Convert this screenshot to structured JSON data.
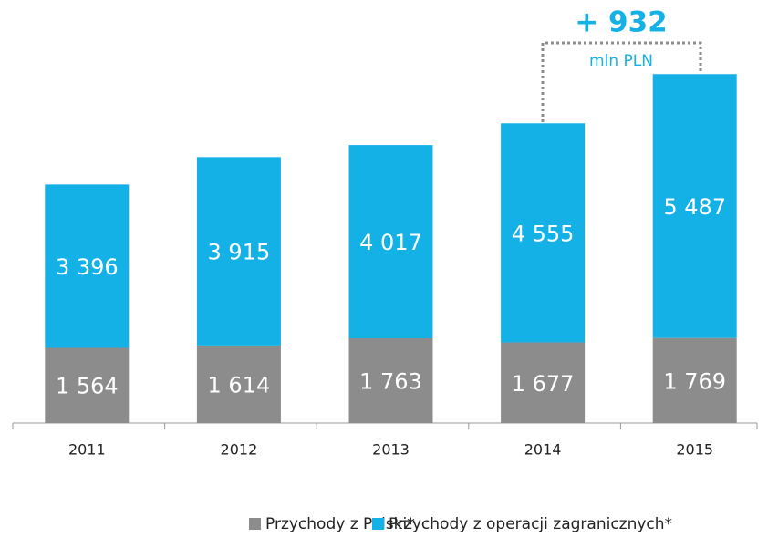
{
  "chart_data": {
    "type": "stacked_bar",
    "categories": [
      "2011",
      "2012",
      "2013",
      "2014",
      "2015"
    ],
    "series": [
      {
        "name": "Przychody z Polski*",
        "color": "#8c8c8c",
        "values": [
          1564,
          1614,
          1763,
          1677,
          1769
        ],
        "value_labels": [
          "1 564",
          "1 614",
          "1 763",
          "1 677",
          "1 769"
        ]
      },
      {
        "name": "Przychody z operacji zagranicznych*",
        "color": "#14b1e7",
        "values": [
          3396,
          3915,
          4017,
          4555,
          5487
        ],
        "value_labels": [
          "3 396",
          "3 915",
          "4 017",
          "4 555",
          "5 487"
        ]
      }
    ],
    "ylim": [
      0,
      8000
    ],
    "annotations": [
      "+ 932",
      "mln PLN"
    ],
    "legend": "bottom"
  }
}
